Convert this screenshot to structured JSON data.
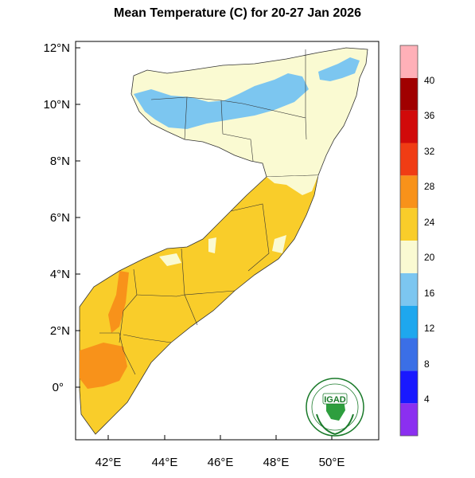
{
  "title": "Mean Temperature (C) for 20-27 Jan 2026",
  "axes": {
    "y_ticks": [
      "12°N",
      "10°N",
      "8°N",
      "6°N",
      "4°N",
      "2°N",
      "0°"
    ],
    "x_ticks": [
      "42°E",
      "44°E",
      "46°E",
      "48°E",
      "50°E"
    ]
  },
  "colorbar": {
    "labels": [
      "4",
      "8",
      "12",
      "16",
      "20",
      "24",
      "28",
      "32",
      "36",
      "40"
    ],
    "colors": [
      "#8b2ff0",
      "#1919ff",
      "#3b6fe6",
      "#1ea7ee",
      "#7cc6f0",
      "#fafad2",
      "#f9cd2a",
      "#f8921a",
      "#f03c14",
      "#d10a0a",
      "#a00000",
      "#ffb0b8"
    ]
  },
  "legend_colors": {
    "temp_16_20": "#7cc6f0",
    "temp_20_24": "#fafad2",
    "temp_24_28": "#f9cd2a",
    "temp_28_32": "#f8921a"
  },
  "logo": {
    "text": "IGAD"
  }
}
